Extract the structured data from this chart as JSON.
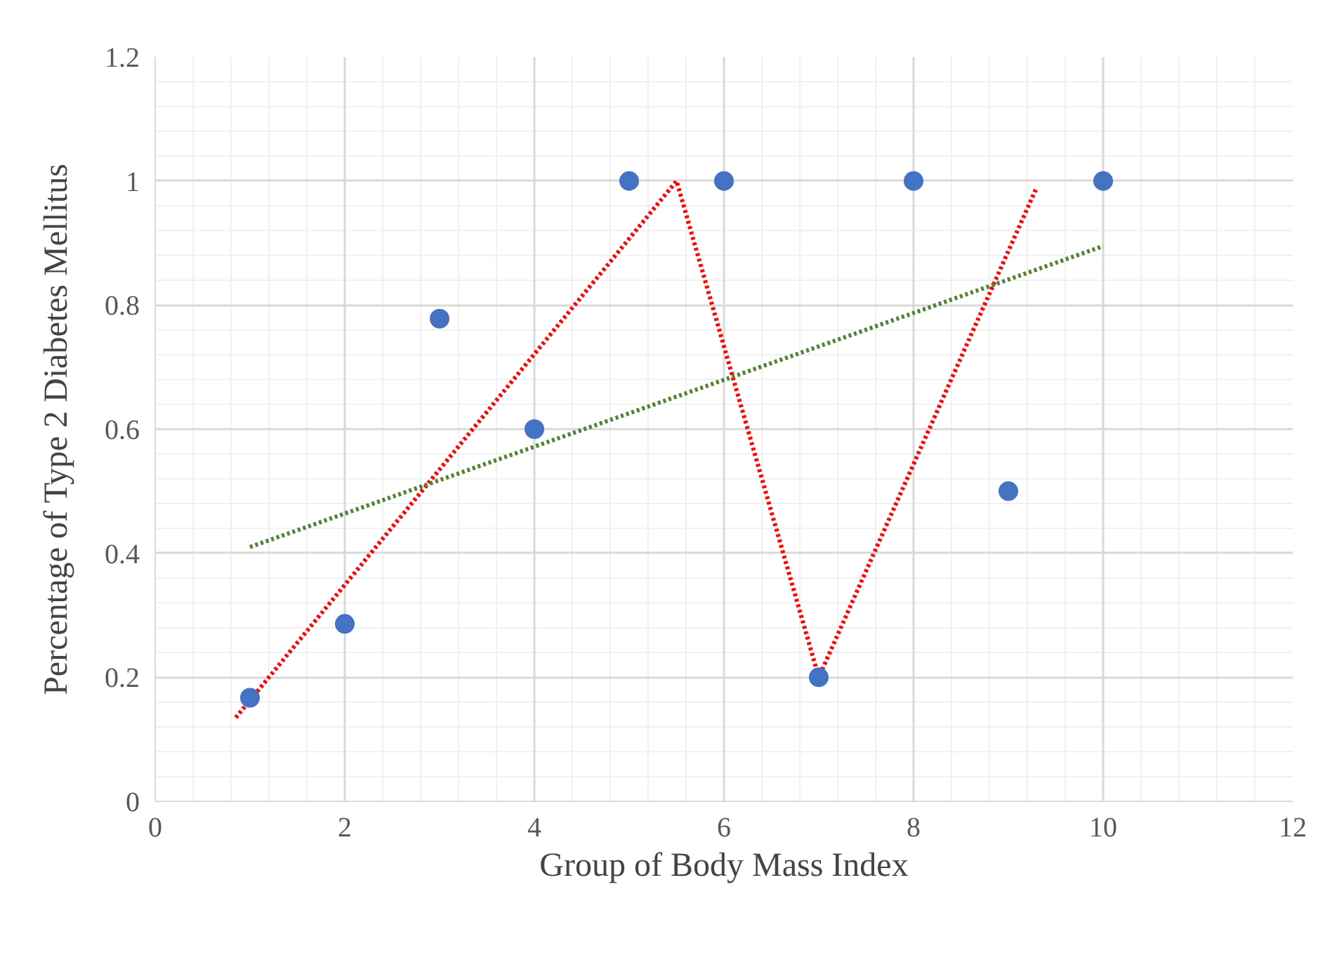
{
  "chart_data": {
    "type": "scatter",
    "xlabel": "Group of Body Mass Index",
    "ylabel": "Percentage of Type 2 Diabetes Mellitus",
    "xlim": [
      0,
      12
    ],
    "ylim": [
      0,
      1.2
    ],
    "xticks": [
      0,
      2,
      4,
      6,
      8,
      10,
      12
    ],
    "yticks": [
      0,
      0.2,
      0.4,
      0.6,
      0.8,
      1,
      1.2
    ],
    "grid": true,
    "series": [
      {
        "marker": "circle",
        "color": "#4472c4",
        "x": [
          1,
          2,
          3,
          4,
          5,
          6,
          7,
          8,
          9,
          10
        ],
        "values": [
          0.167,
          0.286,
          0.778,
          0.6,
          1,
          1,
          0.2,
          1,
          0.5,
          1
        ]
      },
      {
        "type": "line",
        "color": "#ff0000",
        "line_style": "dotted",
        "x": [
          0.85,
          5.5,
          7,
          9.3
        ],
        "values": [
          0.135,
          1.0,
          0.2,
          0.99
        ]
      },
      {
        "type": "line",
        "color": "#548235",
        "line_style": "dotted",
        "x": [
          1,
          10
        ],
        "values": [
          0.41,
          0.895
        ]
      }
    ]
  }
}
